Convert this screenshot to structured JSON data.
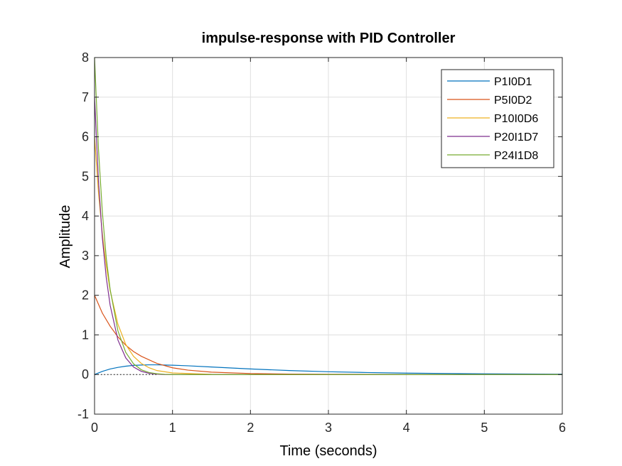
{
  "chart_data": {
    "type": "line",
    "title": "impulse-response with PID Controller",
    "xlabel": "Time (seconds)",
    "ylabel": "Amplitude",
    "xlim": [
      0,
      6
    ],
    "ylim": [
      -1,
      8
    ],
    "xticks": [
      "0",
      "1",
      "2",
      "3",
      "4",
      "5",
      "6"
    ],
    "yticks": [
      "-1",
      "0",
      "1",
      "2",
      "3",
      "4",
      "5",
      "6",
      "7",
      "8"
    ],
    "grid": true,
    "legend_position": "top-right",
    "reference_line_y": 0,
    "series": [
      {
        "name": "P1I0D1",
        "color": "#0072BD",
        "x": [
          0,
          0.1,
          0.2,
          0.3,
          0.4,
          0.5,
          0.6,
          0.7,
          0.8,
          0.9,
          1.0,
          1.2,
          1.5,
          2.0,
          2.5,
          3.0,
          3.5,
          4.0,
          5.0,
          6.0
        ],
        "y": [
          0,
          0.08,
          0.14,
          0.18,
          0.21,
          0.23,
          0.24,
          0.245,
          0.245,
          0.24,
          0.235,
          0.22,
          0.19,
          0.14,
          0.1,
          0.07,
          0.05,
          0.035,
          0.018,
          0.009
        ]
      },
      {
        "name": "P5I0D2",
        "color": "#D95319",
        "x": [
          0,
          0.1,
          0.2,
          0.3,
          0.4,
          0.5,
          0.6,
          0.8,
          1.0,
          1.2,
          1.5,
          2.0,
          2.5,
          3.0,
          4.0,
          5.0,
          6.0
        ],
        "y": [
          2.0,
          1.55,
          1.22,
          0.95,
          0.74,
          0.58,
          0.46,
          0.28,
          0.17,
          0.11,
          0.06,
          0.025,
          0.012,
          0.006,
          0.002,
          0.001,
          0.0
        ]
      },
      {
        "name": "P10I0D6",
        "color": "#EDB120",
        "x": [
          0,
          0.05,
          0.1,
          0.15,
          0.2,
          0.3,
          0.4,
          0.5,
          0.6,
          0.7,
          0.8,
          1.0,
          1.5,
          2.0,
          3.0,
          4.0,
          6.0
        ],
        "y": [
          6.0,
          4.6,
          3.55,
          2.75,
          2.12,
          1.27,
          0.76,
          0.46,
          0.28,
          0.17,
          0.1,
          0.04,
          0.005,
          0.001,
          0.0,
          0.0,
          0.0
        ]
      },
      {
        "name": "P20I1D7",
        "color": "#7E2F8E",
        "x": [
          0,
          0.05,
          0.1,
          0.15,
          0.2,
          0.3,
          0.4,
          0.5,
          0.6,
          0.7,
          0.8,
          0.9,
          1.0,
          1.5,
          2.0,
          3.0,
          4.0,
          6.0
        ],
        "y": [
          7.0,
          4.9,
          3.45,
          2.45,
          1.75,
          0.87,
          0.42,
          0.19,
          0.08,
          0.03,
          0.01,
          0.0,
          0.0,
          0.0,
          0.0,
          0.0,
          0.0,
          0.0
        ]
      },
      {
        "name": "P24I1D8",
        "color": "#77AC30",
        "x": [
          0,
          0.05,
          0.1,
          0.15,
          0.2,
          0.3,
          0.4,
          0.5,
          0.6,
          0.7,
          0.8,
          0.9,
          1.0,
          1.5,
          2.0,
          3.0,
          4.0,
          6.0
        ],
        "y": [
          8.0,
          5.7,
          4.1,
          2.95,
          2.15,
          1.1,
          0.56,
          0.27,
          0.12,
          0.05,
          0.02,
          0.005,
          0.0,
          0.0,
          0.0,
          0.0,
          0.0,
          0.0
        ]
      }
    ]
  }
}
